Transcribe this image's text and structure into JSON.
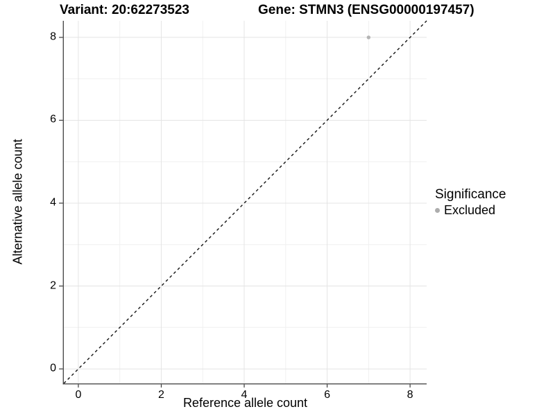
{
  "chart_data": {
    "type": "scatter",
    "titles": {
      "variant": "Variant: 20:62273523",
      "gene": "Gene: STMN3 (ENSG00000197457)"
    },
    "xlabel": "Reference allele count",
    "ylabel": "Alternative allele count",
    "xlim": [
      -0.35,
      8.4
    ],
    "ylim": [
      -0.35,
      8.4
    ],
    "x_ticks": [
      0,
      2,
      4,
      6,
      8
    ],
    "y_ticks": [
      0,
      2,
      4,
      6,
      8
    ],
    "x_minor_ticks": [
      1,
      3,
      5,
      7
    ],
    "y_minor_ticks": [
      1,
      3,
      5,
      7
    ],
    "grid": "major+minor",
    "points": [
      {
        "x": 7,
        "y": 8,
        "significance": "Excluded"
      }
    ],
    "reference_line": {
      "kind": "identity y=x",
      "style": "dashed",
      "color": "#111111"
    },
    "legend": {
      "title": "Significance",
      "position": "right",
      "entries": [
        {
          "label": "Excluded",
          "color": "#adadad"
        }
      ]
    },
    "colors": {
      "point": "#b4b4b4",
      "grid_major": "#e4e4e4",
      "grid_minor": "#f0f0f0",
      "axis_line": "#4b4b4b",
      "tick_mark": "#383838",
      "text": "#000000",
      "background": "#ffffff"
    }
  }
}
